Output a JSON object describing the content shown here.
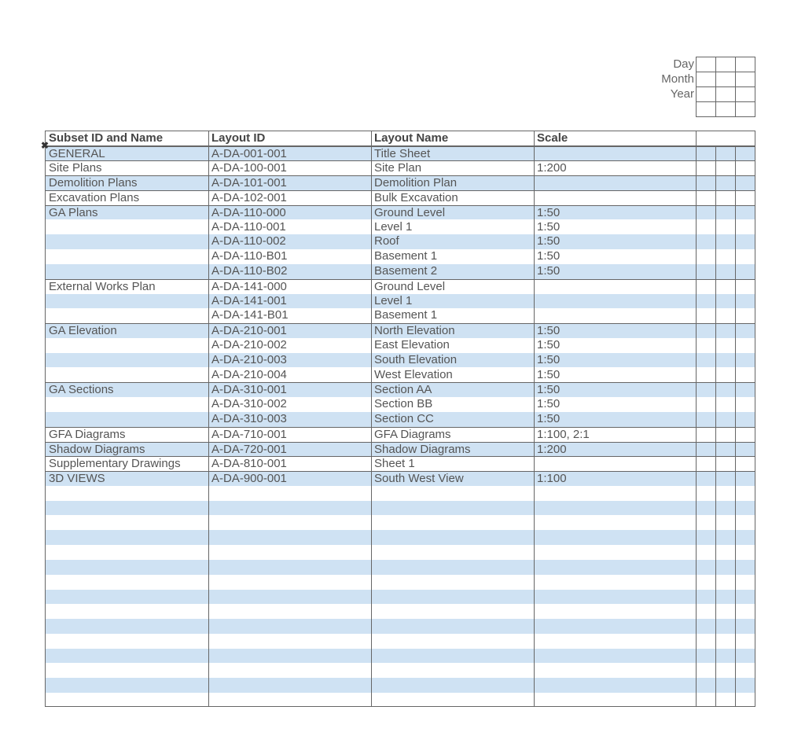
{
  "date_box": {
    "labels": [
      "Day",
      "Month",
      "Year"
    ]
  },
  "table": {
    "headers": [
      "Subset ID and Name",
      "Layout ID",
      "Layout Name",
      "Scale"
    ],
    "rows": [
      {
        "subset": "GENERAL",
        "id": "A-DA-001-001",
        "name": "Title Sheet",
        "scale": "",
        "group_start": true
      },
      {
        "subset": "Site Plans",
        "id": "A-DA-100-001",
        "name": "Site Plan",
        "scale": "1:200",
        "group_start": true
      },
      {
        "subset": "Demolition Plans",
        "id": "A-DA-101-001",
        "name": "Demolition Plan",
        "scale": "",
        "group_start": true
      },
      {
        "subset": "Excavation Plans",
        "id": "A-DA-102-001",
        "name": "Bulk Excavation",
        "scale": "",
        "group_start": true
      },
      {
        "subset": "GA Plans",
        "id": "A-DA-110-000",
        "name": "Ground Level",
        "scale": "1:50",
        "group_start": true
      },
      {
        "subset": "",
        "id": "A-DA-110-001",
        "name": "Level 1",
        "scale": "1:50"
      },
      {
        "subset": "",
        "id": "A-DA-110-002",
        "name": "Roof",
        "scale": "1:50"
      },
      {
        "subset": "",
        "id": "A-DA-110-B01",
        "name": "Basement 1",
        "scale": "1:50"
      },
      {
        "subset": "",
        "id": "A-DA-110-B02",
        "name": "Basement 2",
        "scale": "1:50"
      },
      {
        "subset": "External Works Plan",
        "id": "A-DA-141-000",
        "name": "Ground Level",
        "scale": "",
        "group_start": true
      },
      {
        "subset": "",
        "id": "A-DA-141-001",
        "name": "Level 1",
        "scale": ""
      },
      {
        "subset": "",
        "id": "A-DA-141-B01",
        "name": "Basement 1",
        "scale": ""
      },
      {
        "subset": "GA Elevation",
        "id": "A-DA-210-001",
        "name": "North Elevation",
        "scale": "1:50",
        "group_start": true
      },
      {
        "subset": "",
        "id": "A-DA-210-002",
        "name": "East Elevation",
        "scale": "1:50"
      },
      {
        "subset": "",
        "id": "A-DA-210-003",
        "name": "South Elevation",
        "scale": "1:50"
      },
      {
        "subset": "",
        "id": "A-DA-210-004",
        "name": "West Elevation",
        "scale": "1:50"
      },
      {
        "subset": "GA Sections",
        "id": "A-DA-310-001",
        "name": "Section AA",
        "scale": "1:50",
        "group_start": true
      },
      {
        "subset": "",
        "id": "A-DA-310-002",
        "name": "Section BB",
        "scale": "1:50"
      },
      {
        "subset": "",
        "id": "A-DA-310-003",
        "name": "Section CC",
        "scale": "1:50"
      },
      {
        "subset": "GFA Diagrams",
        "id": "A-DA-710-001",
        "name": "GFA Diagrams",
        "scale": "1:100, 2:1",
        "group_start": true
      },
      {
        "subset": "Shadow Diagrams",
        "id": "A-DA-720-001",
        "name": "Shadow Diagrams",
        "scale": "1:200",
        "group_start": true
      },
      {
        "subset": "Supplementary Drawings",
        "id": "A-DA-810-001",
        "name": "Sheet 1",
        "scale": "",
        "group_start": true
      },
      {
        "subset": "3D VIEWS",
        "id": "A-DA-900-001",
        "name": "South West View",
        "scale": "1:100",
        "group_start": true
      }
    ]
  },
  "colors": {
    "row_alt": "#cfe2f3",
    "grid": "#666666",
    "text": "#555555"
  }
}
